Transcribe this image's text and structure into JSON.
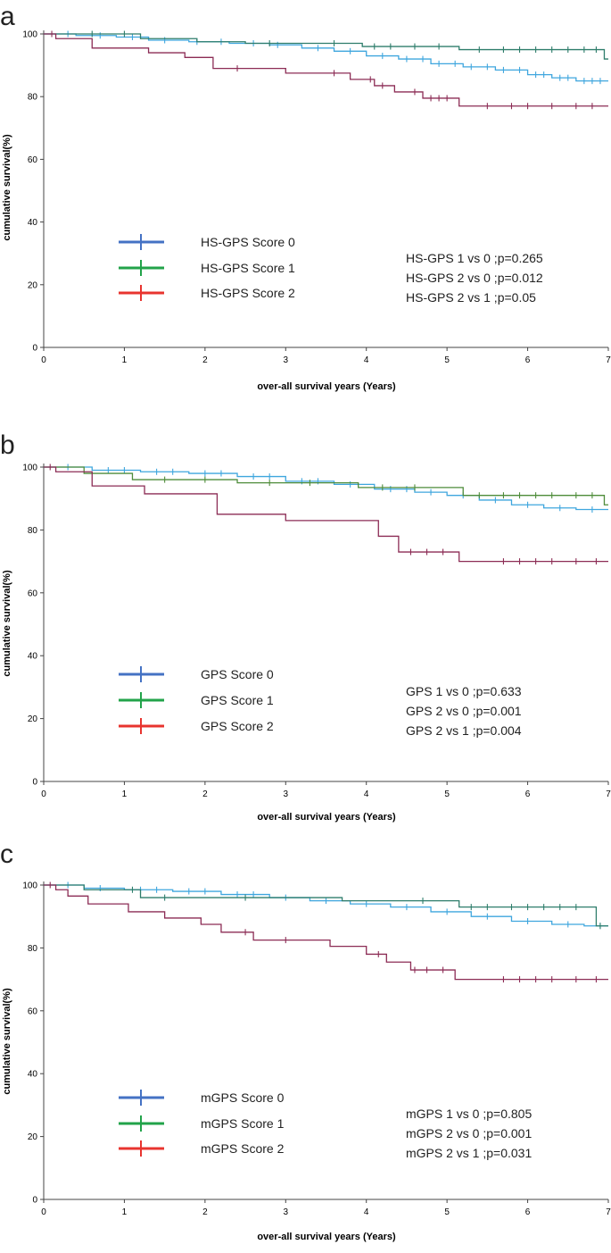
{
  "chart_data": [
    {
      "panel": "a",
      "type": "line",
      "subtype": "kaplan-meier",
      "xlabel": "over-all survival years (Years)",
      "ylabel": "cumulative survival(%)",
      "xlim": [
        0,
        7
      ],
      "ylim": [
        0,
        100
      ],
      "xticks": [
        "0",
        "1",
        "2",
        "3",
        "4",
        "5",
        "6",
        "7"
      ],
      "yticks": [
        "0",
        "20",
        "40",
        "60",
        "80",
        "100"
      ],
      "legend": [
        {
          "label": "HS-GPS Score 0",
          "legend_color": "#4472C4"
        },
        {
          "label": "HS-GPS Score 1",
          "legend_color": "#22A34A"
        },
        {
          "label": "HS-GPS Score 2",
          "legend_color": "#E8342F"
        }
      ],
      "pvalues": [
        "HS-GPS 1 vs 0 ;p=0.265",
        "HS-GPS 2 vs 0 ;p=0.012",
        "HS-GPS 2 vs 1 ;p=0.05"
      ],
      "series": [
        {
          "name": "HS-GPS Score 0",
          "color": "#3FA6DE",
          "x": [
            0,
            0.4,
            0.9,
            1.3,
            1.8,
            2.3,
            2.8,
            3.2,
            3.6,
            4.0,
            4.4,
            4.8,
            5.2,
            5.6,
            6.0,
            6.3,
            6.6,
            7.0
          ],
          "y": [
            100,
            99.5,
            99,
            98,
            97.5,
            97,
            96.5,
            95.5,
            94.5,
            93,
            92,
            90.5,
            89.5,
            88.5,
            87,
            86,
            85,
            85
          ],
          "censors": [
            0.3,
            0.7,
            1.1,
            1.5,
            1.9,
            2.2,
            2.6,
            2.9,
            3.4,
            3.8,
            4.2,
            4.5,
            4.7,
            4.9,
            5.1,
            5.3,
            5.5,
            5.7,
            5.9,
            6.1,
            6.2,
            6.4,
            6.5,
            6.7,
            6.8,
            6.9
          ]
        },
        {
          "name": "HS-GPS Score 1",
          "color": "#2E7D6B",
          "x": [
            0,
            1.2,
            1.9,
            2.5,
            3.95,
            5.15,
            6.95,
            7.0
          ],
          "y": [
            100,
            98.5,
            97.5,
            97,
            96,
            95,
            92,
            92
          ],
          "censors": [
            0.6,
            1.0,
            2.8,
            3.6,
            4.1,
            4.3,
            4.6,
            4.9,
            5.4,
            5.7,
            5.9,
            6.1,
            6.3,
            6.5,
            6.7,
            6.85
          ]
        },
        {
          "name": "HS-GPS Score 2",
          "color": "#8C2C55",
          "x": [
            0,
            0.15,
            0.6,
            1.3,
            1.75,
            2.1,
            3.0,
            3.8,
            4.1,
            4.35,
            4.7,
            5.15,
            7.0
          ],
          "y": [
            100,
            98.5,
            95.5,
            94,
            92.5,
            89,
            87.5,
            85.5,
            83.5,
            81.5,
            79.5,
            77,
            77
          ],
          "censors": [
            0.1,
            2.4,
            3.6,
            4.05,
            4.2,
            4.6,
            4.8,
            4.9,
            5.0,
            5.5,
            5.8,
            6.0,
            6.3,
            6.6,
            6.8
          ]
        }
      ]
    },
    {
      "panel": "b",
      "type": "line",
      "subtype": "kaplan-meier",
      "xlabel": "over-all survival years (Years)",
      "ylabel": "cumulative survival(%)",
      "xlim": [
        0,
        7
      ],
      "ylim": [
        0,
        100
      ],
      "xticks": [
        "0",
        "1",
        "2",
        "3",
        "4",
        "5",
        "6",
        "7"
      ],
      "yticks": [
        "0",
        "20",
        "40",
        "60",
        "80",
        "100"
      ],
      "legend": [
        {
          "label": "GPS Score 0",
          "legend_color": "#4472C4"
        },
        {
          "label": "GPS Score 1",
          "legend_color": "#22A34A"
        },
        {
          "label": "GPS Score 2",
          "legend_color": "#E8342F"
        }
      ],
      "pvalues": [
        "GPS 1 vs 0 ;p=0.633",
        "GPS 2 vs 0 ;p=0.001",
        "GPS 2 vs 1 ;p=0.004"
      ],
      "series": [
        {
          "name": "GPS Score 0",
          "color": "#3FA6DE",
          "x": [
            0,
            0.6,
            1.2,
            1.8,
            2.4,
            3.0,
            3.6,
            4.1,
            4.6,
            5.0,
            5.4,
            5.8,
            6.2,
            6.6,
            7.0
          ],
          "y": [
            100,
            99,
            98.5,
            98,
            97,
            95.5,
            94.5,
            93,
            92,
            91,
            89.5,
            88,
            87,
            86.5,
            86.5
          ],
          "censors": [
            0.3,
            0.8,
            1.0,
            1.4,
            1.6,
            2.0,
            2.2,
            2.6,
            2.8,
            3.2,
            3.4,
            3.8,
            4.3,
            4.5,
            4.8,
            5.2,
            5.6,
            6.0,
            6.4,
            6.8
          ]
        },
        {
          "name": "GPS Score 1",
          "color": "#4E8C3A",
          "x": [
            0,
            0.5,
            1.1,
            2.4,
            3.9,
            5.2,
            6.95,
            7.0
          ],
          "y": [
            100,
            98,
            96,
            95,
            93.5,
            91,
            88,
            88
          ],
          "censors": [
            1.5,
            2.0,
            2.8,
            3.3,
            4.2,
            4.6,
            5.4,
            5.7,
            5.9,
            6.1,
            6.3,
            6.6,
            6.8
          ]
        },
        {
          "name": "GPS Score 2",
          "color": "#8C2C55",
          "x": [
            0,
            0.15,
            0.6,
            1.25,
            2.15,
            3.0,
            4.15,
            4.4,
            5.15,
            7.0
          ],
          "y": [
            100,
            98.5,
            94,
            91.5,
            85,
            83,
            78,
            73,
            70,
            70
          ],
          "censors": [
            0.08,
            4.55,
            4.75,
            4.95,
            5.7,
            5.9,
            6.1,
            6.3,
            6.6,
            6.85
          ]
        }
      ]
    },
    {
      "panel": "c",
      "type": "line",
      "subtype": "kaplan-meier",
      "xlabel": "over-all survival years (Years)",
      "ylabel": "cumulative survival(%)",
      "xlim": [
        0,
        7
      ],
      "ylim": [
        0,
        100
      ],
      "xticks": [
        "0",
        "1",
        "2",
        "3",
        "4",
        "5",
        "6",
        "7"
      ],
      "yticks": [
        "0",
        "20",
        "40",
        "60",
        "80",
        "100"
      ],
      "legend": [
        {
          "label": "mGPS Score 0",
          "legend_color": "#4472C4"
        },
        {
          "label": "mGPS Score 1",
          "legend_color": "#22A34A"
        },
        {
          "label": "mGPS Score 2",
          "legend_color": "#E8342F"
        }
      ],
      "pvalues": [
        "mGPS 1 vs 0 ;p=0.805",
        "mGPS 2 vs 0 ;p=0.001",
        "mGPS 2 vs 1 ;p=0.031"
      ],
      "series": [
        {
          "name": "mGPS Score 0",
          "color": "#3FA6DE",
          "x": [
            0,
            0.5,
            1.0,
            1.6,
            2.2,
            2.8,
            3.3,
            3.8,
            4.3,
            4.8,
            5.3,
            5.8,
            6.3,
            6.7,
            7.0
          ],
          "y": [
            100,
            99,
            98.5,
            98,
            97,
            96,
            95,
            94,
            93,
            91.5,
            90,
            88.5,
            87.5,
            87,
            87
          ],
          "censors": [
            0.3,
            0.7,
            1.2,
            1.4,
            1.8,
            2.0,
            2.4,
            2.6,
            3.0,
            3.5,
            4.0,
            4.5,
            5.0,
            5.5,
            6.0,
            6.5,
            6.9
          ]
        },
        {
          "name": "mGPS Score 1",
          "color": "#2E7D6B",
          "x": [
            0,
            0.5,
            1.2,
            3.7,
            5.15,
            6.85,
            7.0
          ],
          "y": [
            100,
            98.5,
            96,
            95,
            93,
            87,
            87
          ],
          "censors": [
            1.1,
            1.5,
            2.5,
            4.7,
            5.3,
            5.5,
            5.8,
            6.0,
            6.2,
            6.4,
            6.6,
            6.9
          ]
        },
        {
          "name": "mGPS Score 2",
          "color": "#8C2C55",
          "x": [
            0,
            0.15,
            0.3,
            0.55,
            1.05,
            1.5,
            1.95,
            2.2,
            2.6,
            3.55,
            4.0,
            4.25,
            4.55,
            5.1,
            7.0
          ],
          "y": [
            100,
            98.5,
            96.5,
            94,
            91.5,
            89.5,
            87.5,
            85,
            82.5,
            80.5,
            78,
            75.5,
            73,
            70,
            70
          ],
          "censors": [
            0.08,
            2.5,
            3.0,
            4.15,
            4.6,
            4.75,
            4.95,
            5.7,
            5.9,
            6.1,
            6.3,
            6.6,
            6.85
          ]
        }
      ]
    }
  ]
}
